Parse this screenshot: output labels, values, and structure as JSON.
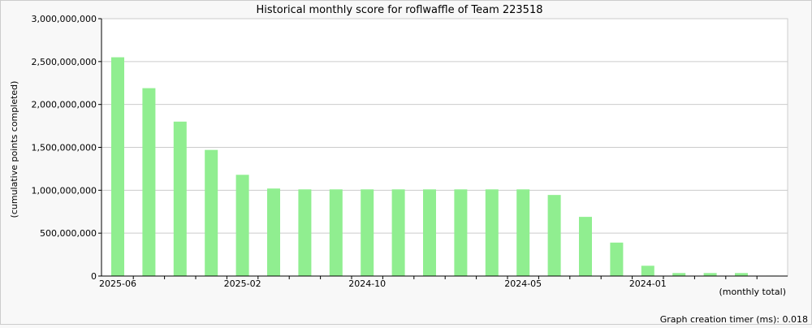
{
  "chart_data": {
    "type": "bar",
    "title": "Historical monthly score for roflwaffle of Team 223518",
    "ylabel": "(cumulative points completed)",
    "xlabel": "(monthly total)",
    "footer": "Graph creation timer (ms): 0.018",
    "ylim": [
      0,
      3000000000
    ],
    "y_ticks": [
      {
        "value": 0,
        "label": "0"
      },
      {
        "value": 500000000,
        "label": "500,000,000"
      },
      {
        "value": 1000000000,
        "label": "1,000,000,000"
      },
      {
        "value": 1500000000,
        "label": "1,500,000,000"
      },
      {
        "value": 2000000000,
        "label": "2,000,000,000"
      },
      {
        "value": 2500000000,
        "label": "2,500,000,000"
      },
      {
        "value": 3000000000,
        "label": "3,000,000,000"
      }
    ],
    "x_tick_labels": [
      {
        "index": 0,
        "label": "2025-06"
      },
      {
        "index": 4,
        "label": "2025-02"
      },
      {
        "index": 8,
        "label": "2024-10"
      },
      {
        "index": 13,
        "label": "2024-05"
      },
      {
        "index": 17,
        "label": "2024-01"
      }
    ],
    "grid": true,
    "bar_color": "#90ee90",
    "values": [
      2550000000,
      2190000000,
      1800000000,
      1470000000,
      1180000000,
      1020000000,
      1010000000,
      1010000000,
      1010000000,
      1010000000,
      1010000000,
      1010000000,
      1010000000,
      1010000000,
      945000000,
      690000000,
      390000000,
      120000000,
      35000000,
      35000000,
      35000000,
      5000000
    ]
  }
}
